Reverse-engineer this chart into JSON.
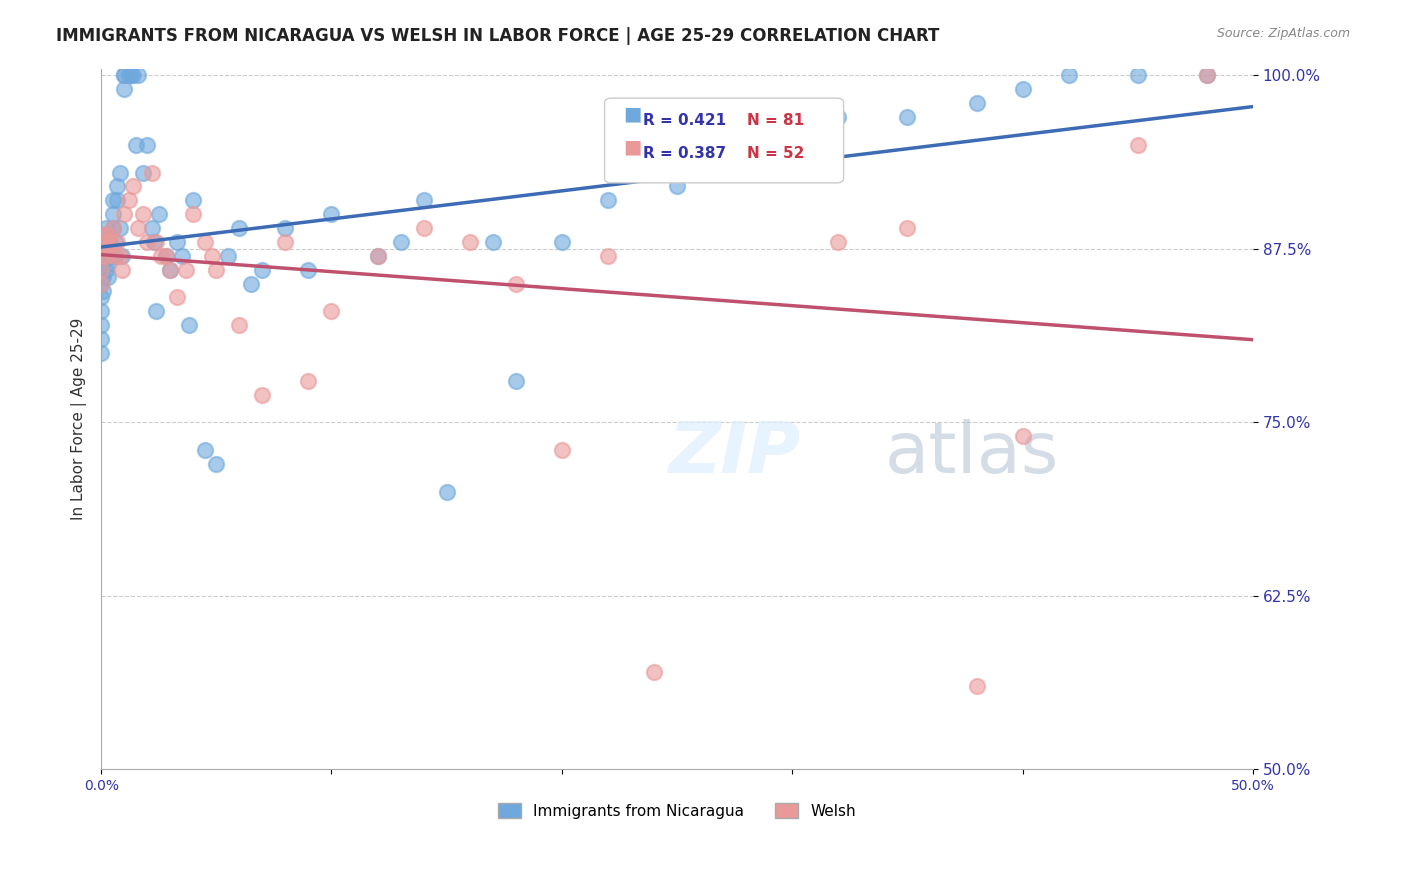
{
  "title": "IMMIGRANTS FROM NICARAGUA VS WELSH IN LABOR FORCE | AGE 25-29 CORRELATION CHART",
  "source": "Source: ZipAtlas.com",
  "xlabel": "",
  "ylabel": "In Labor Force | Age 25-29",
  "xmin": 0.0,
  "xmax": 0.5,
  "ymin": 0.5,
  "ymax": 1.005,
  "yticks": [
    0.5,
    0.625,
    0.75,
    0.875,
    1.0
  ],
  "ytick_labels": [
    "50.0%",
    "62.5%",
    "75.0%",
    "87.5%",
    "100.0%"
  ],
  "xticks": [
    0.0,
    0.1,
    0.2,
    0.3,
    0.4,
    0.5
  ],
  "xtick_labels": [
    "0.0%",
    "",
    "",
    "",
    "",
    "50.0%"
  ],
  "blue_color": "#6fa8dc",
  "pink_color": "#ea9999",
  "blue_line_color": "#3d6bb5",
  "pink_line_color": "#c0516e",
  "legend_R_blue": "0.421",
  "legend_N_blue": "81",
  "legend_R_pink": "0.387",
  "legend_N_pink": "52",
  "watermark": "ZIPatlas",
  "blue_scatter_x": [
    0.0,
    0.0,
    0.0,
    0.0,
    0.0,
    0.0,
    0.0,
    0.0,
    0.0,
    0.001,
    0.001,
    0.001,
    0.001,
    0.001,
    0.002,
    0.002,
    0.002,
    0.002,
    0.003,
    0.003,
    0.003,
    0.003,
    0.004,
    0.004,
    0.005,
    0.005,
    0.005,
    0.006,
    0.006,
    0.007,
    0.007,
    0.008,
    0.008,
    0.009,
    0.01,
    0.01,
    0.01,
    0.012,
    0.013,
    0.014,
    0.015,
    0.016,
    0.018,
    0.02,
    0.022,
    0.023,
    0.024,
    0.025,
    0.028,
    0.03,
    0.033,
    0.035,
    0.038,
    0.04,
    0.045,
    0.05,
    0.055,
    0.06,
    0.065,
    0.07,
    0.08,
    0.09,
    0.1,
    0.12,
    0.13,
    0.14,
    0.15,
    0.17,
    0.18,
    0.2,
    0.22,
    0.25,
    0.27,
    0.3,
    0.32,
    0.35,
    0.38,
    0.4,
    0.42,
    0.45,
    0.48
  ],
  "blue_scatter_y": [
    0.88,
    0.87,
    0.86,
    0.85,
    0.84,
    0.83,
    0.82,
    0.81,
    0.8,
    0.885,
    0.875,
    0.865,
    0.855,
    0.845,
    0.89,
    0.88,
    0.87,
    0.86,
    0.885,
    0.875,
    0.865,
    0.855,
    0.88,
    0.87,
    0.91,
    0.9,
    0.89,
    0.88,
    0.87,
    0.92,
    0.91,
    0.93,
    0.89,
    0.87,
    1.0,
    1.0,
    0.99,
    1.0,
    1.0,
    1.0,
    0.95,
    1.0,
    0.93,
    0.95,
    0.89,
    0.88,
    0.83,
    0.9,
    0.87,
    0.86,
    0.88,
    0.87,
    0.82,
    0.91,
    0.73,
    0.72,
    0.87,
    0.89,
    0.85,
    0.86,
    0.89,
    0.86,
    0.9,
    0.87,
    0.88,
    0.91,
    0.7,
    0.88,
    0.78,
    0.88,
    0.91,
    0.92,
    0.94,
    0.95,
    0.97,
    0.97,
    0.98,
    0.99,
    1.0,
    1.0,
    1.0
  ],
  "pink_scatter_x": [
    0.0,
    0.0,
    0.0,
    0.0,
    0.001,
    0.001,
    0.002,
    0.002,
    0.003,
    0.003,
    0.004,
    0.005,
    0.006,
    0.007,
    0.008,
    0.009,
    0.01,
    0.012,
    0.014,
    0.016,
    0.018,
    0.02,
    0.022,
    0.024,
    0.026,
    0.028,
    0.03,
    0.033,
    0.037,
    0.04,
    0.045,
    0.048,
    0.05,
    0.06,
    0.07,
    0.08,
    0.09,
    0.1,
    0.12,
    0.14,
    0.16,
    0.18,
    0.2,
    0.22,
    0.24,
    0.3,
    0.32,
    0.35,
    0.38,
    0.4,
    0.45,
    0.48
  ],
  "pink_scatter_y": [
    0.88,
    0.87,
    0.86,
    0.85,
    0.885,
    0.875,
    0.88,
    0.87,
    0.885,
    0.875,
    0.88,
    0.89,
    0.87,
    0.88,
    0.87,
    0.86,
    0.9,
    0.91,
    0.92,
    0.89,
    0.9,
    0.88,
    0.93,
    0.88,
    0.87,
    0.87,
    0.86,
    0.84,
    0.86,
    0.9,
    0.88,
    0.87,
    0.86,
    0.82,
    0.77,
    0.88,
    0.78,
    0.83,
    0.87,
    0.89,
    0.88,
    0.85,
    0.73,
    0.87,
    0.57,
    0.93,
    0.88,
    0.89,
    0.56,
    0.74,
    0.95,
    1.0
  ]
}
